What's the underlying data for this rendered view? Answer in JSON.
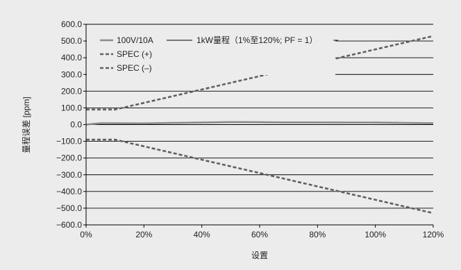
{
  "chart_data": {
    "type": "line",
    "title": "1kW量程（1%至120%; PF = 1）",
    "xlabel": "设置",
    "ylabel": "量程误差 [ppm]",
    "xlim": [
      0,
      120
    ],
    "ylim": [
      -600,
      600
    ],
    "x_ticks": [
      0,
      20,
      40,
      60,
      80,
      100,
      120
    ],
    "x_tick_labels": [
      "0%",
      "20%",
      "40%",
      "60%",
      "80%",
      "100%",
      "120%"
    ],
    "y_ticks": [
      600,
      500,
      400,
      300,
      200,
      100,
      0,
      -100,
      -200,
      -300,
      -400,
      -500,
      -600
    ],
    "y_tick_labels": [
      "600.0",
      "500.0",
      "400.0",
      "300.0",
      "200.0",
      "100.0",
      "0.0",
      "−100.0",
      "−200.0",
      "−300.0",
      "−400.0",
      "−500.0",
      "−600.0"
    ],
    "grid": "horizontal",
    "legend_position": "top-left",
    "series": [
      {
        "name": "100V/10A",
        "style": "solid",
        "color": "#8a8a8a",
        "x": [
          0,
          5,
          10,
          20,
          30,
          40,
          50,
          60,
          70,
          80,
          90,
          100,
          110,
          120
        ],
        "values": [
          0,
          8,
          8,
          7,
          10,
          12,
          15,
          14,
          13,
          13,
          12,
          12,
          10,
          8
        ]
      },
      {
        "name": "SPEC (+)",
        "style": "dashed",
        "color": "#606060",
        "x": [
          0,
          10,
          120
        ],
        "values": [
          90,
          90,
          530
        ]
      },
      {
        "name": "SPEC (–)",
        "style": "dashed",
        "color": "#606060",
        "x": [
          0,
          10,
          120
        ],
        "values": [
          -90,
          -90,
          -530
        ]
      }
    ]
  }
}
